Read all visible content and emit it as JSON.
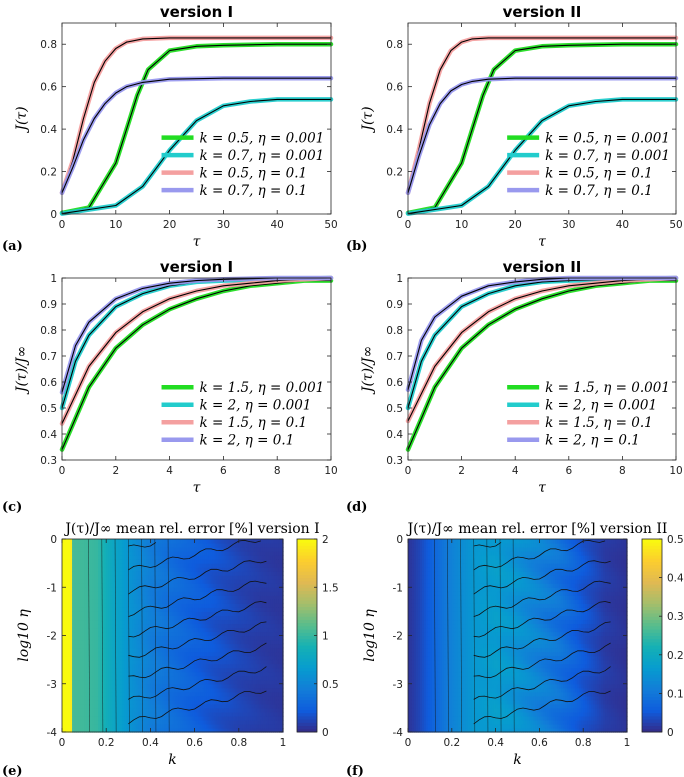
{
  "chart_data": [
    {
      "id": "a",
      "panel_label": "(a)",
      "type": "line",
      "title": "version I",
      "xlabel": "τ",
      "ylabel": "J(τ)",
      "xlim": [
        0,
        50
      ],
      "ylim": [
        0,
        0.9
      ],
      "xticks": [
        "0",
        "10",
        "20",
        "30",
        "40",
        "50"
      ],
      "yticks": [
        "0",
        "0.2",
        "0.4",
        "0.6",
        "0.8"
      ],
      "legend_position": "lower-right",
      "series": [
        {
          "name": "k = 0.5, η = 0.001",
          "color": "#22dd22",
          "x": [
            0,
            5,
            10,
            12,
            14,
            16,
            20,
            25,
            30,
            40,
            50
          ],
          "y": [
            0.005,
            0.03,
            0.24,
            0.4,
            0.56,
            0.68,
            0.77,
            0.79,
            0.795,
            0.8,
            0.8
          ]
        },
        {
          "name": "k = 0.7, η = 0.001",
          "color": "#22cccc",
          "x": [
            0,
            10,
            15,
            20,
            25,
            30,
            35,
            40,
            50
          ],
          "y": [
            0.002,
            0.04,
            0.13,
            0.3,
            0.44,
            0.51,
            0.53,
            0.54,
            0.54
          ]
        },
        {
          "name": "k = 0.5, η = 0.1",
          "color": "#f4a0a0",
          "x": [
            0,
            2,
            4,
            6,
            8,
            10,
            12,
            15,
            20,
            30,
            50
          ],
          "y": [
            0.1,
            0.25,
            0.45,
            0.62,
            0.72,
            0.78,
            0.81,
            0.825,
            0.83,
            0.83,
            0.83
          ]
        },
        {
          "name": "k = 0.7, η = 0.1",
          "color": "#9999ee",
          "x": [
            0,
            2,
            4,
            6,
            8,
            10,
            12,
            15,
            20,
            30,
            50
          ],
          "y": [
            0.1,
            0.22,
            0.35,
            0.45,
            0.52,
            0.57,
            0.6,
            0.62,
            0.635,
            0.64,
            0.64
          ]
        }
      ]
    },
    {
      "id": "b",
      "panel_label": "(b)",
      "type": "line",
      "title": "version II",
      "xlabel": "τ",
      "ylabel": "J(τ)",
      "xlim": [
        0,
        50
      ],
      "ylim": [
        0,
        0.9
      ],
      "xticks": [
        "0",
        "10",
        "20",
        "30",
        "40",
        "50"
      ],
      "yticks": [
        "0",
        "0.2",
        "0.4",
        "0.6",
        "0.8"
      ],
      "legend_position": "lower-right",
      "series": [
        {
          "name": "k = 0.5, η = 0.001",
          "color": "#22dd22",
          "x": [
            0,
            5,
            10,
            12,
            14,
            16,
            20,
            25,
            30,
            40,
            50
          ],
          "y": [
            0.005,
            0.03,
            0.24,
            0.4,
            0.56,
            0.68,
            0.77,
            0.79,
            0.795,
            0.8,
            0.8
          ]
        },
        {
          "name": "k = 0.7, η = 0.001",
          "color": "#22cccc",
          "x": [
            0,
            10,
            15,
            20,
            25,
            30,
            35,
            40,
            50
          ],
          "y": [
            0.002,
            0.04,
            0.13,
            0.3,
            0.44,
            0.51,
            0.53,
            0.54,
            0.54
          ]
        },
        {
          "name": "k = 0.5, η = 0.1",
          "color": "#f4a0a0",
          "x": [
            0,
            2,
            4,
            6,
            8,
            10,
            12,
            15,
            20,
            30,
            50
          ],
          "y": [
            0.1,
            0.3,
            0.52,
            0.68,
            0.77,
            0.81,
            0.825,
            0.83,
            0.83,
            0.83,
            0.83
          ]
        },
        {
          "name": "k = 0.7, η = 0.1",
          "color": "#9999ee",
          "x": [
            0,
            2,
            4,
            6,
            8,
            10,
            12,
            15,
            20,
            30,
            50
          ],
          "y": [
            0.1,
            0.27,
            0.42,
            0.52,
            0.58,
            0.61,
            0.625,
            0.635,
            0.64,
            0.64,
            0.64
          ]
        }
      ]
    },
    {
      "id": "c",
      "panel_label": "(c)",
      "type": "line",
      "title": "version I",
      "xlabel": "τ",
      "ylabel": "J(τ)/J∞",
      "xlim": [
        0,
        10
      ],
      "ylim": [
        0.3,
        1
      ],
      "xticks": [
        "0",
        "2",
        "4",
        "6",
        "8",
        "10"
      ],
      "yticks": [
        "0.3",
        "0.4",
        "0.5",
        "0.6",
        "0.7",
        "0.8",
        "0.9",
        "1"
      ],
      "legend_position": "lower-right",
      "series": [
        {
          "name": "k = 1.5, η = 0.001",
          "color": "#22dd22",
          "x": [
            0,
            1,
            2,
            3,
            4,
            5,
            6,
            7,
            8,
            9,
            10
          ],
          "y": [
            0.34,
            0.58,
            0.73,
            0.82,
            0.88,
            0.92,
            0.95,
            0.97,
            0.98,
            0.99,
            0.99
          ]
        },
        {
          "name": "k = 2, η = 0.001",
          "color": "#22cccc",
          "x": [
            0,
            0.5,
            1,
            2,
            3,
            4,
            5,
            6,
            8,
            10
          ],
          "y": [
            0.5,
            0.68,
            0.78,
            0.89,
            0.94,
            0.97,
            0.985,
            0.99,
            0.995,
            1.0
          ]
        },
        {
          "name": "k = 1.5, η = 0.1",
          "color": "#f4a0a0",
          "x": [
            0,
            1,
            2,
            3,
            4,
            5,
            6,
            7,
            8,
            10
          ],
          "y": [
            0.44,
            0.66,
            0.79,
            0.87,
            0.92,
            0.95,
            0.97,
            0.98,
            0.99,
            1.0
          ]
        },
        {
          "name": "k = 2, η = 0.1",
          "color": "#9999ee",
          "x": [
            0,
            0.5,
            1,
            2,
            3,
            4,
            5,
            6,
            8,
            10
          ],
          "y": [
            0.56,
            0.74,
            0.83,
            0.92,
            0.96,
            0.98,
            0.99,
            0.995,
            1.0,
            1.0
          ]
        }
      ]
    },
    {
      "id": "d",
      "panel_label": "(d)",
      "type": "line",
      "title": "version II",
      "xlabel": "τ",
      "ylabel": "J(τ)/J∞",
      "xlim": [
        0,
        10
      ],
      "ylim": [
        0.3,
        1
      ],
      "xticks": [
        "0",
        "2",
        "4",
        "6",
        "8",
        "10"
      ],
      "yticks": [
        "0.3",
        "0.4",
        "0.5",
        "0.6",
        "0.7",
        "0.8",
        "0.9",
        "1"
      ],
      "legend_position": "lower-right",
      "series": [
        {
          "name": "k = 1.5, η = 0.001",
          "color": "#22dd22",
          "x": [
            0,
            1,
            2,
            3,
            4,
            5,
            6,
            7,
            8,
            9,
            10
          ],
          "y": [
            0.34,
            0.58,
            0.73,
            0.82,
            0.88,
            0.92,
            0.95,
            0.97,
            0.98,
            0.99,
            0.99
          ]
        },
        {
          "name": "k = 2, η = 0.001",
          "color": "#22cccc",
          "x": [
            0,
            0.5,
            1,
            2,
            3,
            4,
            5,
            6,
            8,
            10
          ],
          "y": [
            0.5,
            0.68,
            0.78,
            0.89,
            0.94,
            0.97,
            0.985,
            0.99,
            0.995,
            1.0
          ]
        },
        {
          "name": "k = 1.5, η = 0.1",
          "color": "#f4a0a0",
          "x": [
            0,
            1,
            2,
            3,
            4,
            5,
            6,
            7,
            8,
            10
          ],
          "y": [
            0.45,
            0.66,
            0.79,
            0.87,
            0.92,
            0.95,
            0.97,
            0.98,
            0.99,
            1.0
          ]
        },
        {
          "name": "k = 2, η = 0.1",
          "color": "#9999ee",
          "x": [
            0,
            0.5,
            1,
            2,
            3,
            4,
            5,
            6,
            8,
            10
          ],
          "y": [
            0.57,
            0.76,
            0.85,
            0.93,
            0.97,
            0.985,
            0.995,
            1.0,
            1.0,
            1.0
          ]
        }
      ]
    },
    {
      "id": "e",
      "panel_label": "(e)",
      "type": "heatmap",
      "title": "J(τ)/J∞ mean rel. error [%] version I",
      "xlabel": "k",
      "ylabel": "log10 η",
      "xlim": [
        0,
        1
      ],
      "ylim": [
        -4,
        0
      ],
      "xticks": [
        "0",
        "0.2",
        "0.4",
        "0.6",
        "0.8",
        "1"
      ],
      "yticks": [
        "0",
        "-1",
        "-2",
        "-3",
        "-4"
      ],
      "colorbar": {
        "range": [
          0,
          2
        ],
        "ticks": [
          "0",
          "0.5",
          "1",
          "1.5",
          "2"
        ]
      },
      "profile_k": [
        0.0,
        0.04,
        0.05,
        0.16,
        0.2,
        0.3,
        0.4,
        0.5,
        0.6,
        0.7,
        0.8,
        0.9,
        1.0
      ],
      "profile_value": [
        2.0,
        2.0,
        1.05,
        1.0,
        0.85,
        0.62,
        0.45,
        0.34,
        0.25,
        0.18,
        0.12,
        0.08,
        0.06
      ]
    },
    {
      "id": "f",
      "panel_label": "(f)",
      "type": "heatmap",
      "title": "J(τ)/J∞ mean rel. error [%] version II",
      "xlabel": "k",
      "ylabel": "log10 η",
      "xlim": [
        0,
        1
      ],
      "ylim": [
        -4,
        0
      ],
      "xticks": [
        "0",
        "0.2",
        "0.4",
        "0.6",
        "0.8",
        "1"
      ],
      "yticks": [
        "0",
        "-1",
        "-2",
        "-3",
        "-4"
      ],
      "colorbar": {
        "range": [
          0,
          0.5
        ],
        "ticks": [
          "0",
          "0.1",
          "0.2",
          "0.3",
          "0.4",
          "0.5"
        ]
      },
      "profile_k": [
        0.0,
        0.05,
        0.1,
        0.15,
        0.2,
        0.3,
        0.4,
        0.5,
        0.6,
        0.7,
        0.8,
        0.9,
        1.0
      ],
      "profile_value": [
        0.01,
        0.03,
        0.06,
        0.09,
        0.12,
        0.16,
        0.17,
        0.15,
        0.12,
        0.09,
        0.05,
        0.02,
        0.01
      ]
    }
  ]
}
